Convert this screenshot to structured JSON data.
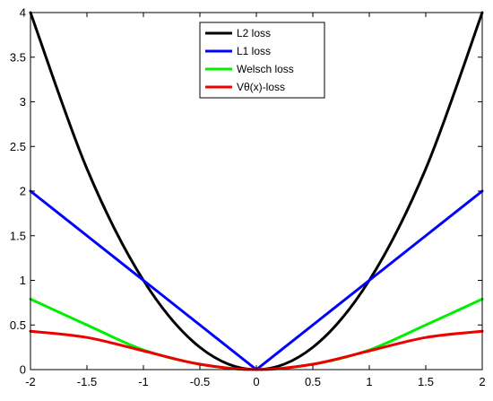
{
  "chart_data": {
    "type": "line",
    "title": "",
    "xlabel": "",
    "ylabel": "",
    "xlim": [
      -2,
      2
    ],
    "ylim": [
      0,
      4
    ],
    "x_ticks": [
      -2,
      -1.5,
      -1,
      -0.5,
      0,
      0.5,
      1,
      1.5,
      2
    ],
    "y_ticks": [
      0,
      0.5,
      1,
      1.5,
      2,
      2.5,
      3,
      3.5,
      4
    ],
    "x_tick_labels": [
      "-2",
      "-1.5",
      "-1",
      "-0.5",
      "0",
      "0.5",
      "1",
      "1.5",
      "2"
    ],
    "y_tick_labels": [
      "0",
      "0.5",
      "1",
      "1.5",
      "2",
      "2.5",
      "3",
      "3.5",
      "4"
    ],
    "grid": false,
    "legend_position": "top-center",
    "x": [
      -2,
      -1.5,
      -1,
      -0.5,
      0,
      0.5,
      1,
      1.5,
      2
    ],
    "series": [
      {
        "name": "L2 loss",
        "color": "#000000",
        "values": [
          4,
          2.25,
          1,
          0.25,
          0,
          0.25,
          1,
          2.25,
          4
        ]
      },
      {
        "name": "L1 loss",
        "color": "#0000ff",
        "values": [
          2,
          1.5,
          1,
          0.5,
          0,
          0.5,
          1,
          1.5,
          2
        ]
      },
      {
        "name": "Welsch loss",
        "color": "#00ee00",
        "values": [
          0.79,
          0.5,
          0.22,
          0.06,
          0,
          0.06,
          0.22,
          0.5,
          0.79
        ]
      },
      {
        "name": "Vθ(x)-loss",
        "color": "#ee0000",
        "values": [
          0.43,
          0.36,
          0.21,
          0.06,
          0,
          0.06,
          0.21,
          0.36,
          0.43
        ]
      }
    ]
  }
}
